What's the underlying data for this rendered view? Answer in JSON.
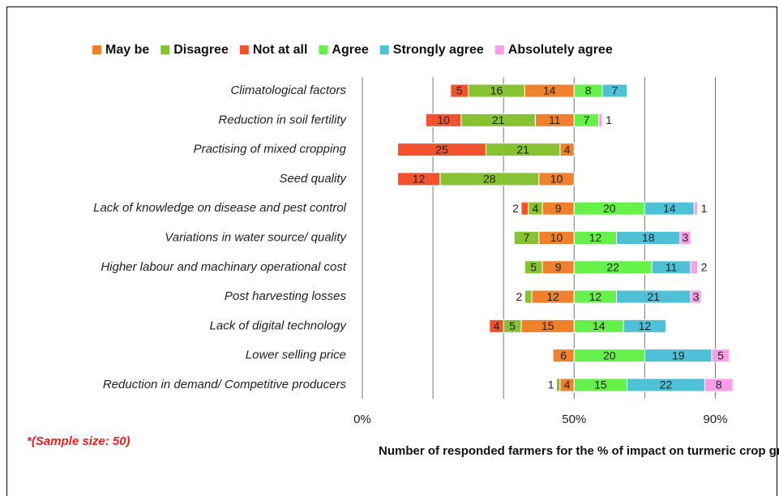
{
  "chart_data": {
    "type": "diverging-bar",
    "x_label": "Number of responded farmers for the % of impact on turmeric crop growth",
    "note": "*(Sample size: 50)",
    "categories": [
      "Climatological factors",
      "Reduction in soil fertility",
      "Practising of mixed cropping",
      "Seed quality",
      "Lack of knowledge on disease and pest control",
      "Variations in water source/ quality",
      "Higher labour and machinary operational cost",
      "Post harvesting losses",
      "Lack of digital technology",
      "Lower selling price",
      "Reduction in demand/ Competitive producers"
    ],
    "series": [
      {
        "name": "May be",
        "color": "#f0802b",
        "side": "negative",
        "values": [
          14,
          11,
          4,
          10,
          9,
          10,
          9,
          12,
          15,
          6,
          4
        ]
      },
      {
        "name": "Disagree",
        "color": "#86c232",
        "side": "negative",
        "values": [
          16,
          21,
          21,
          28,
          4,
          7,
          5,
          2,
          5,
          0,
          1
        ]
      },
      {
        "name": "Not at all",
        "color": "#f2532e",
        "side": "negative",
        "values": [
          5,
          10,
          25,
          12,
          2,
          0,
          0,
          0,
          4,
          0,
          0
        ]
      },
      {
        "name": "Agree",
        "color": "#66f04a",
        "side": "positive",
        "values": [
          8,
          7,
          0,
          0,
          20,
          12,
          22,
          12,
          14,
          20,
          15
        ]
      },
      {
        "name": "Strongly agree",
        "color": "#4fc1d6",
        "side": "positive",
        "values": [
          7,
          0,
          0,
          0,
          14,
          18,
          11,
          21,
          12,
          19,
          22
        ]
      },
      {
        "name": "Absolutely agree",
        "color": "#fb9de8",
        "side": "positive",
        "values": [
          0,
          1,
          0,
          0,
          1,
          3,
          2,
          3,
          0,
          5,
          8
        ]
      }
    ],
    "xlim": [
      -60,
      50
    ],
    "xticks": [
      {
        "value": -60,
        "label": "0%"
      },
      {
        "value": 0,
        "label": "50%"
      },
      {
        "value": 40,
        "label": "90%"
      }
    ],
    "xgrid": [
      -60,
      -40,
      -20,
      0,
      20,
      40
    ],
    "grid": true
  }
}
